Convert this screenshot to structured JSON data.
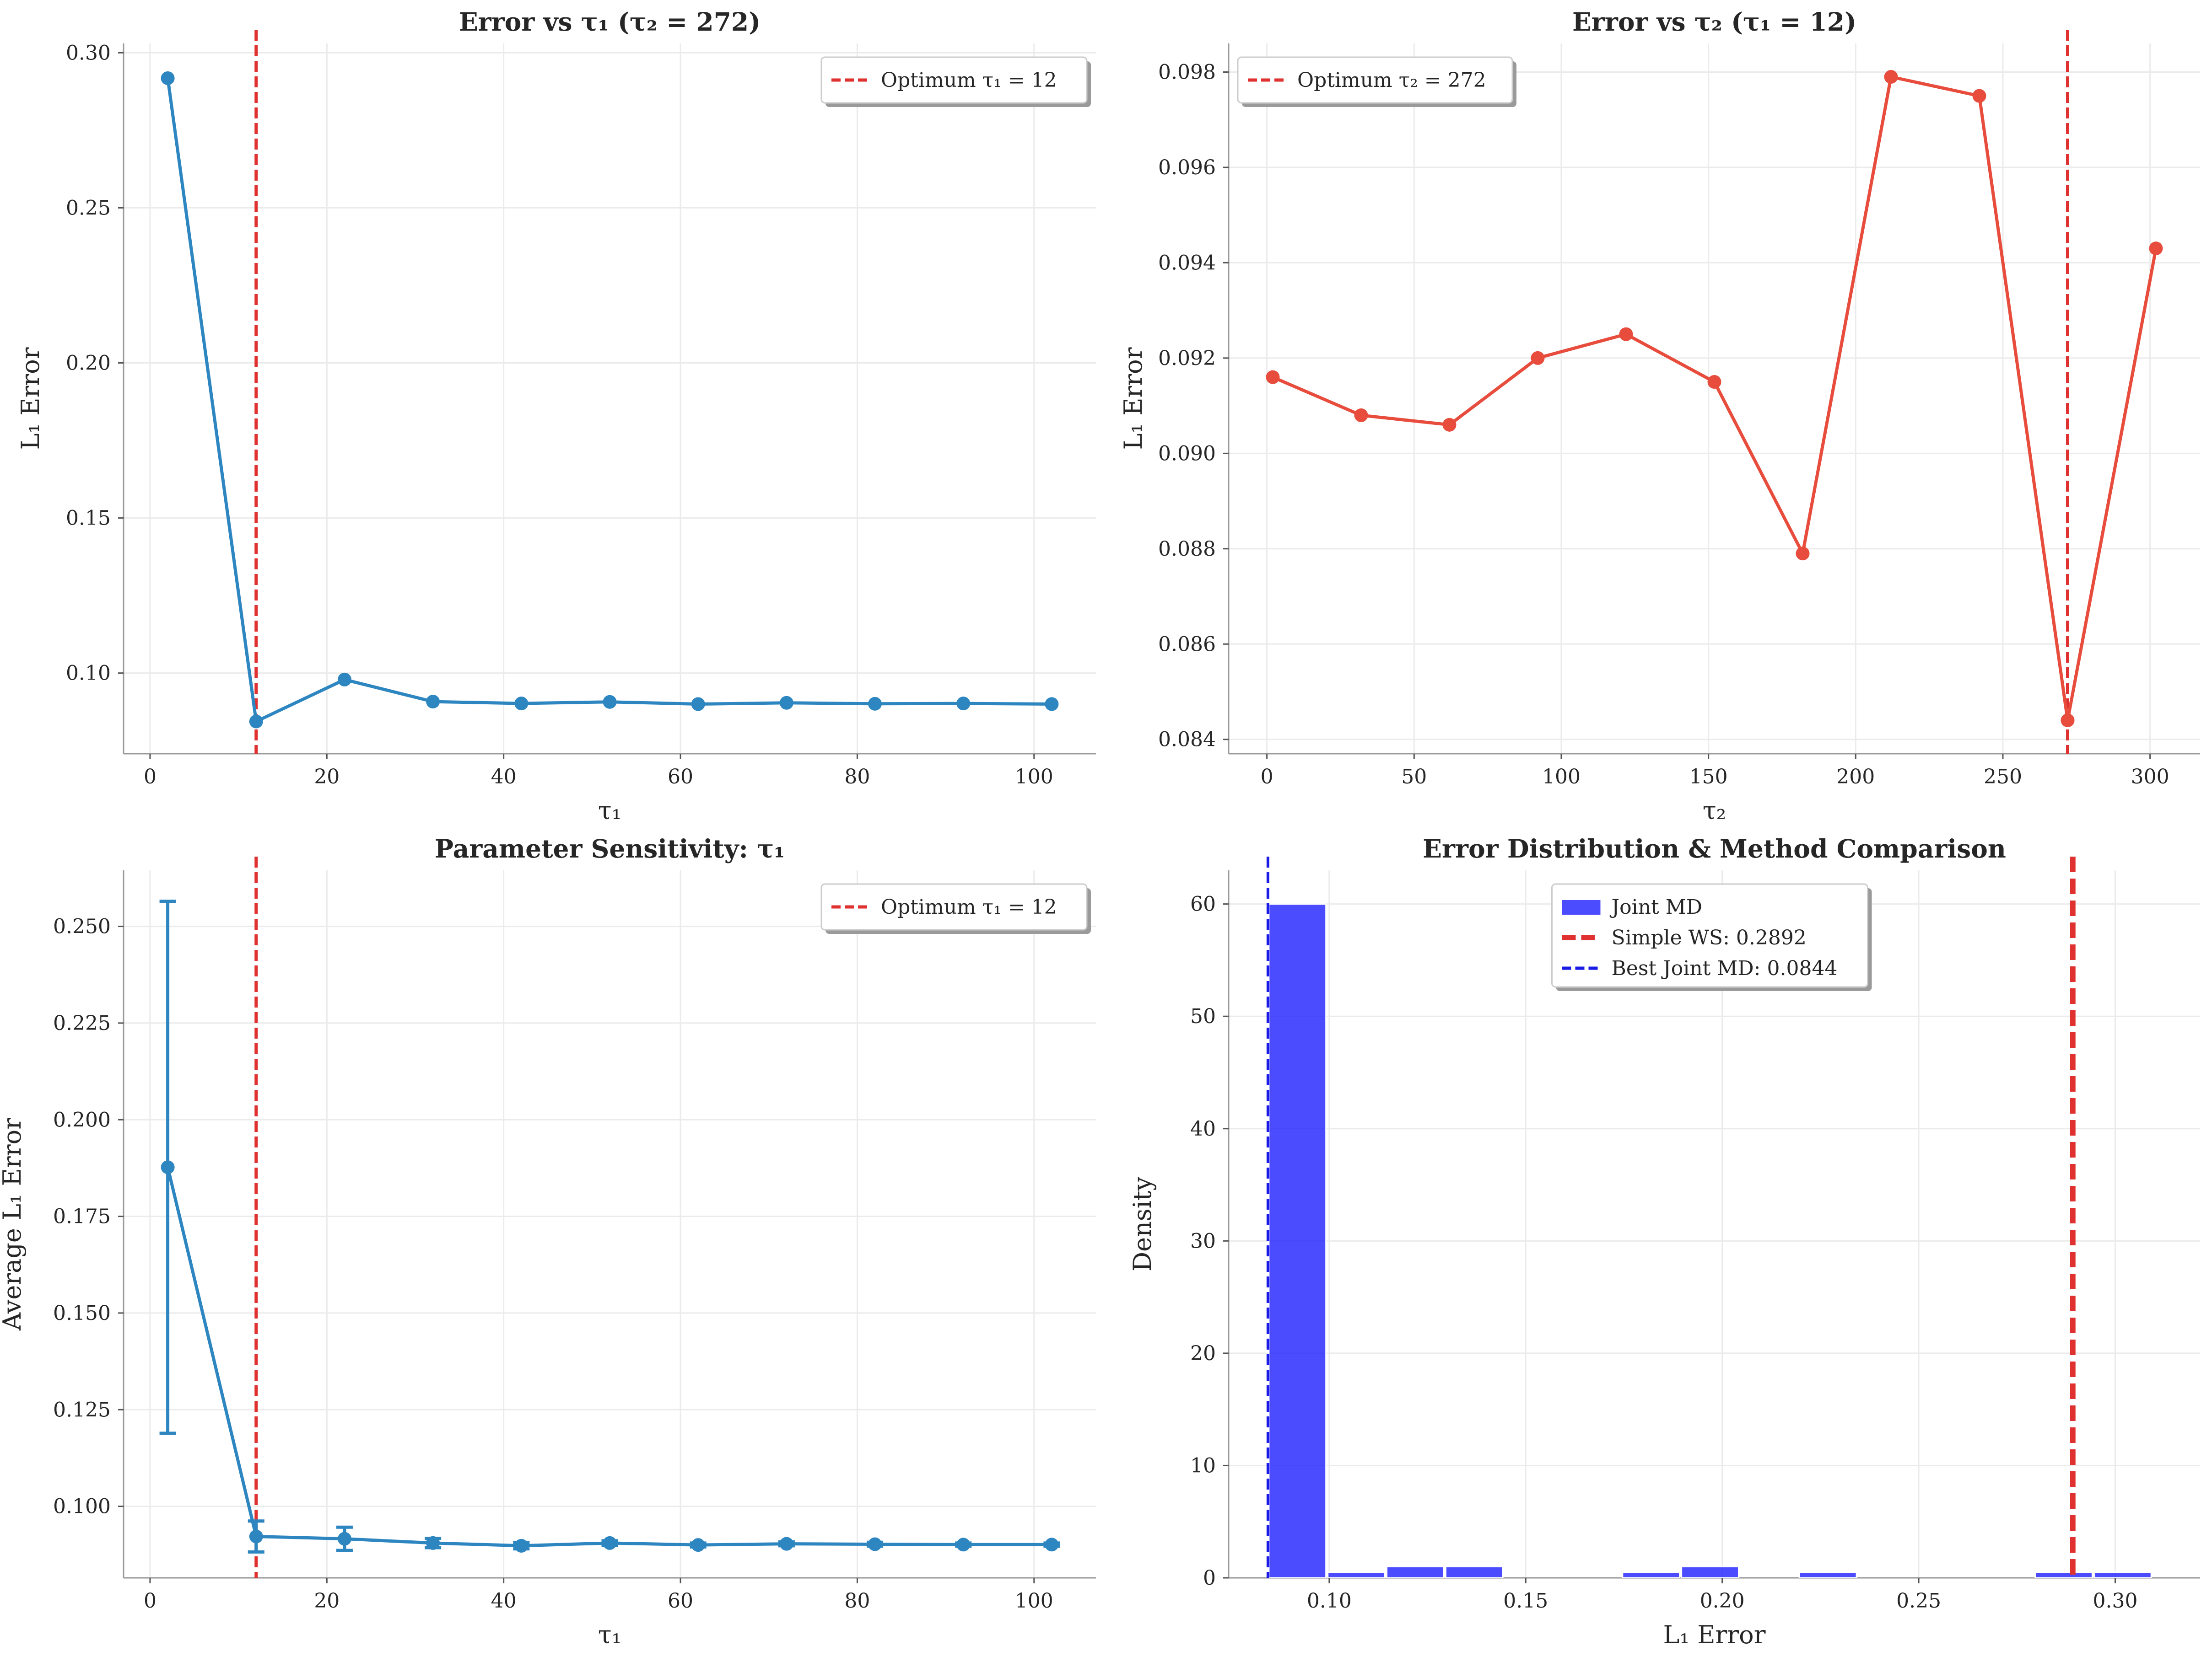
{
  "figure": {
    "background": "#ffffff"
  },
  "charts": [
    {
      "type": "line",
      "title": "Error vs τ₁ (τ₂ = 272)",
      "xlabel": "τ₁",
      "ylabel": "L₁ Error",
      "xlim": [
        -3,
        107
      ],
      "ylim": [
        0.074,
        0.303
      ],
      "xticks": [
        0,
        20,
        40,
        60,
        80,
        100
      ],
      "xtick_labels": [
        "0",
        "20",
        "40",
        "60",
        "80",
        "100"
      ],
      "yticks": [
        0.1,
        0.15,
        0.2,
        0.25,
        0.3
      ],
      "ytick_labels": [
        "0.10",
        "0.15",
        "0.20",
        "0.25",
        "0.30"
      ],
      "grid": true,
      "legend_position": "top-right",
      "series": [
        {
          "kind": "line",
          "color": "#2e86c1",
          "x": [
            2,
            12,
            22,
            32,
            42,
            52,
            62,
            72,
            82,
            92,
            102
          ],
          "y": [
            0.2918,
            0.0844,
            0.0979,
            0.0908,
            0.0902,
            0.0907,
            0.09,
            0.0904,
            0.0901,
            0.0902,
            0.09
          ]
        },
        {
          "kind": "vline",
          "name": "Optimum τ₁ = 12",
          "color": "#e03131",
          "x": 12,
          "dashed": true
        }
      ]
    },
    {
      "type": "line",
      "title": "Error vs τ₂ (τ₁ = 12)",
      "xlabel": "τ₂",
      "ylabel": "L₁ Error",
      "xlim": [
        -13,
        317
      ],
      "ylim": [
        0.0837,
        0.0986
      ],
      "xticks": [
        0,
        50,
        100,
        150,
        200,
        250,
        300
      ],
      "xtick_labels": [
        "0",
        "50",
        "100",
        "150",
        "200",
        "250",
        "300"
      ],
      "yticks": [
        0.084,
        0.086,
        0.088,
        0.09,
        0.092,
        0.094,
        0.096,
        0.098
      ],
      "ytick_labels": [
        "0.084",
        "0.086",
        "0.088",
        "0.090",
        "0.092",
        "0.094",
        "0.096",
        "0.098"
      ],
      "grid": true,
      "legend_position": "top-left",
      "series": [
        {
          "kind": "line",
          "color": "#e74c3c",
          "x": [
            2,
            32,
            62,
            92,
            122,
            152,
            182,
            212,
            242,
            272,
            302
          ],
          "y": [
            0.0916,
            0.0908,
            0.0906,
            0.092,
            0.0925,
            0.0915,
            0.0879,
            0.0979,
            0.0975,
            0.0844,
            0.0943
          ]
        },
        {
          "kind": "vline",
          "name": "Optimum τ₂ = 272",
          "color": "#e03131",
          "x": 272,
          "dashed": true
        }
      ]
    },
    {
      "type": "line",
      "title": "Parameter Sensitivity: τ₁",
      "xlabel": "τ₁",
      "ylabel": "Average L₁ Error",
      "xlim": [
        -3,
        107
      ],
      "ylim": [
        0.0815,
        0.2645
      ],
      "xticks": [
        0,
        20,
        40,
        60,
        80,
        100
      ],
      "xtick_labels": [
        "0",
        "20",
        "40",
        "60",
        "80",
        "100"
      ],
      "yticks": [
        0.1,
        0.125,
        0.15,
        0.175,
        0.2,
        0.225,
        0.25
      ],
      "ytick_labels": [
        "0.100",
        "0.125",
        "0.150",
        "0.175",
        "0.200",
        "0.225",
        "0.250"
      ],
      "grid": true,
      "legend_position": "top-right",
      "series": [
        {
          "kind": "errorbar",
          "color": "#2e86c1",
          "x": [
            2,
            12,
            22,
            32,
            42,
            52,
            62,
            72,
            82,
            92,
            102
          ],
          "y": [
            0.1877,
            0.0922,
            0.0916,
            0.0905,
            0.0898,
            0.0905,
            0.09,
            0.0903,
            0.0902,
            0.0901,
            0.0901
          ],
          "yerr": [
            0.0688,
            0.004,
            0.003,
            0.0012,
            0.0008,
            0.0006,
            0.0005,
            0.0005,
            0.0005,
            0.0004,
            0.0004
          ]
        },
        {
          "kind": "vline",
          "name": "Optimum τ₁ = 12",
          "color": "#e03131",
          "x": 12,
          "dashed": true
        }
      ]
    },
    {
      "type": "bar",
      "title": "Error Distribution & Method Comparison",
      "xlabel": "L₁ Error",
      "ylabel": "Density",
      "xlim": [
        0.0744,
        0.3216
      ],
      "ylim": [
        0,
        63
      ],
      "xticks": [
        0.1,
        0.15,
        0.2,
        0.25,
        0.3
      ],
      "xtick_labels": [
        "0.10",
        "0.15",
        "0.20",
        "0.25",
        "0.30"
      ],
      "yticks": [
        0,
        10,
        20,
        30,
        40,
        50,
        60
      ],
      "ytick_labels": [
        "0",
        "10",
        "20",
        "30",
        "40",
        "50",
        "60"
      ],
      "grid": true,
      "legend_position": "top-center",
      "series": [
        {
          "kind": "hist",
          "name": "Joint MD",
          "color": "#1a1aff",
          "bin_edges": [
            0.0844,
            0.0994,
            0.1144,
            0.1294,
            0.1444,
            0.1594,
            0.1744,
            0.1894,
            0.2044,
            0.2194,
            0.2344,
            0.2494,
            0.2644,
            0.2794,
            0.2944,
            0.3094
          ],
          "values": [
            60,
            0.5,
            1.0,
            1.0,
            0,
            0,
            0.5,
            1.0,
            0,
            0.5,
            0,
            0,
            0,
            0.5,
            0.5
          ]
        },
        {
          "kind": "vline",
          "name": "Simple WS: 0.2892",
          "color": "#e03131",
          "x": 0.2892,
          "dashed": true,
          "thick": true
        },
        {
          "kind": "vline",
          "name": "Best Joint MD: 0.0844",
          "color": "#1a1ae6",
          "x": 0.0844,
          "dashed": true,
          "thick": false
        }
      ]
    }
  ]
}
